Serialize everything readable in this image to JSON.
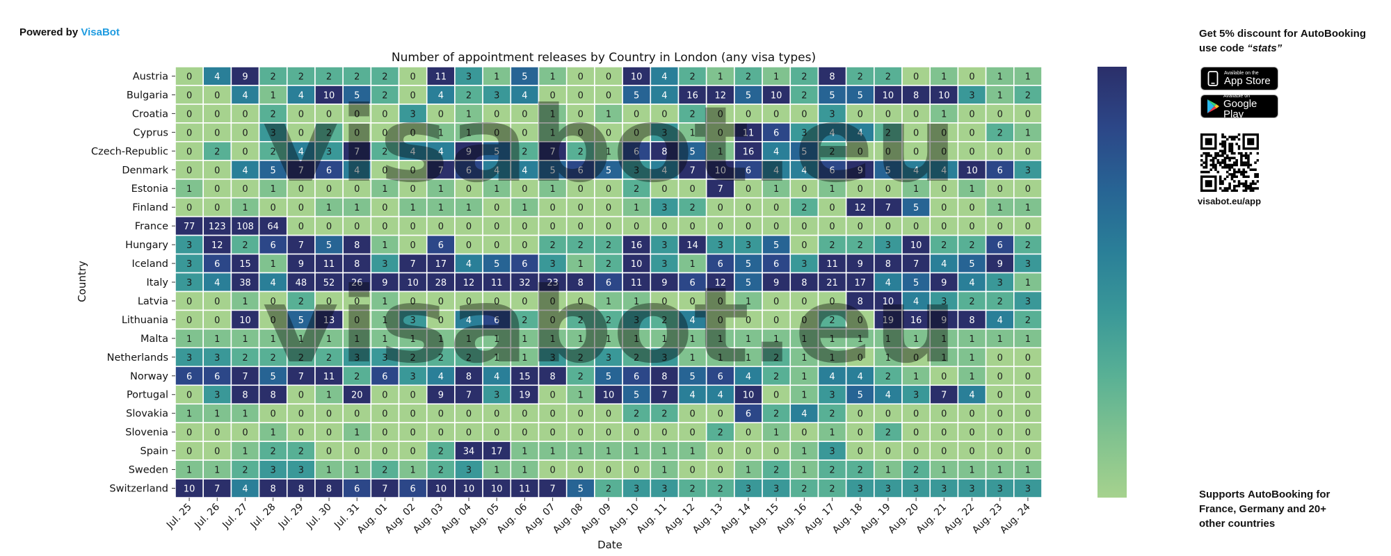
{
  "header": {
    "powered_prefix": "Powered by",
    "powered_brand": "VisaBot"
  },
  "promo": {
    "top_lines": [
      [
        {
          "t": "Get 5% discount for ",
          "b": false
        },
        {
          "t": "AutoBooking",
          "b": true
        }
      ],
      [
        {
          "t": "use code ",
          "b": false
        },
        {
          "t": "“stats”",
          "b": true,
          "i": true
        }
      ]
    ],
    "bottom_lines": [
      [
        {
          "t": "Supports ",
          "b": false
        },
        {
          "t": "AutoBooking",
          "b": true
        },
        {
          "t": " for",
          "b": false
        }
      ],
      [
        {
          "t": "France, Germany and 20+",
          "b": false
        }
      ],
      [
        {
          "t": "other countries",
          "b": false
        }
      ]
    ],
    "app_store_small": "Available on the",
    "app_store_big": "App Store",
    "google_play_small": "Available on",
    "google_play_big": "Google Play",
    "qr_url": "visabot.eu/app"
  },
  "watermark": "visabot.eu",
  "colors": {
    "brand": "#1e9be0",
    "cell_border": "#ffffff"
  },
  "chart_data": {
    "type": "heatmap",
    "title": "Number of appointment releases by Country in London (any visa types)",
    "xlabel": "Date",
    "ylabel": "Country",
    "colorbar": {
      "min": 0,
      "max": 7,
      "ticks": [
        0,
        1,
        2,
        3,
        4,
        5,
        6,
        7
      ]
    },
    "colorscale": [
      "#a6d28e",
      "#80c28f",
      "#58b095",
      "#3a9898",
      "#2a7f98",
      "#276494",
      "#2c4788",
      "#2b2f6a"
    ],
    "x": [
      "Jul. 25",
      "Jul. 26",
      "Jul. 27",
      "Jul. 28",
      "Jul. 29",
      "Jul. 30",
      "Jul. 31",
      "Aug. 01",
      "Aug. 02",
      "Aug. 03",
      "Aug. 04",
      "Aug. 05",
      "Aug. 06",
      "Aug. 07",
      "Aug. 08",
      "Aug. 09",
      "Aug. 10",
      "Aug. 11",
      "Aug. 12",
      "Aug. 13",
      "Aug. 14",
      "Aug. 15",
      "Aug. 16",
      "Aug. 17",
      "Aug. 18",
      "Aug. 19",
      "Aug. 20",
      "Aug. 21",
      "Aug. 22",
      "Aug. 23",
      "Aug. 24"
    ],
    "y": [
      "Austria",
      "Bulgaria",
      "Croatia",
      "Cyprus",
      "Czech-Republic",
      "Denmark",
      "Estonia",
      "Finland",
      "France",
      "Hungary",
      "Iceland",
      "Italy",
      "Latvia",
      "Lithuania",
      "Malta",
      "Netherlands",
      "Norway",
      "Portugal",
      "Slovakia",
      "Slovenia",
      "Spain",
      "Sweden",
      "Switzerland"
    ],
    "z": [
      [
        0,
        4,
        9,
        2,
        2,
        2,
        2,
        2,
        0,
        11,
        3,
        1,
        5,
        1,
        0,
        0,
        10,
        4,
        2,
        1,
        2,
        1,
        2,
        8,
        2,
        2,
        0,
        1,
        0,
        1,
        1
      ],
      [
        0,
        0,
        4,
        1,
        4,
        10,
        5,
        2,
        0,
        4,
        2,
        3,
        4,
        0,
        0,
        0,
        5,
        4,
        16,
        12,
        5,
        10,
        2,
        5,
        5,
        10,
        8,
        10,
        3,
        1,
        2
      ],
      [
        0,
        0,
        0,
        2,
        0,
        0,
        0,
        0,
        3,
        0,
        1,
        0,
        0,
        1,
        0,
        1,
        0,
        0,
        2,
        0,
        0,
        0,
        0,
        3,
        0,
        0,
        0,
        1,
        0,
        0,
        0
      ],
      [
        0,
        0,
        0,
        3,
        0,
        2,
        0,
        0,
        0,
        1,
        1,
        0,
        0,
        1,
        0,
        0,
        0,
        3,
        1,
        0,
        11,
        6,
        3,
        4,
        4,
        2,
        0,
        0,
        0,
        2,
        1
      ],
      [
        0,
        2,
        0,
        2,
        4,
        3,
        7,
        2,
        4,
        4,
        9,
        5,
        2,
        7,
        2,
        1,
        6,
        8,
        5,
        1,
        16,
        4,
        5,
        2,
        0,
        0,
        0,
        0,
        0,
        0,
        0
      ],
      [
        0,
        0,
        4,
        5,
        7,
        6,
        4,
        0,
        0,
        7,
        6,
        4,
        4,
        5,
        6,
        5,
        3,
        4,
        7,
        10,
        6,
        4,
        4,
        6,
        9,
        5,
        4,
        4,
        10,
        6,
        3
      ],
      [
        1,
        0,
        0,
        1,
        0,
        0,
        0,
        1,
        0,
        1,
        0,
        1,
        0,
        1,
        0,
        0,
        2,
        0,
        0,
        7,
        0,
        1,
        0,
        1,
        0,
        0,
        1,
        0,
        1,
        0,
        0
      ],
      [
        0,
        0,
        1,
        0,
        0,
        1,
        1,
        0,
        1,
        1,
        1,
        0,
        1,
        0,
        0,
        0,
        1,
        3,
        2,
        0,
        0,
        0,
        2,
        0,
        12,
        7,
        5,
        0,
        0,
        1,
        1
      ],
      [
        77,
        123,
        108,
        64,
        0,
        0,
        0,
        0,
        0,
        0,
        0,
        0,
        0,
        0,
        0,
        0,
        0,
        0,
        0,
        0,
        0,
        0,
        0,
        0,
        0,
        0,
        0,
        0,
        0,
        0,
        0
      ],
      [
        3,
        12,
        2,
        6,
        7,
        5,
        8,
        1,
        0,
        6,
        0,
        0,
        0,
        2,
        2,
        2,
        16,
        3,
        14,
        3,
        3,
        5,
        0,
        2,
        2,
        3,
        10,
        2,
        2,
        6,
        2
      ],
      [
        3,
        6,
        15,
        1,
        9,
        11,
        8,
        3,
        7,
        17,
        4,
        5,
        6,
        3,
        1,
        2,
        10,
        3,
        1,
        6,
        5,
        6,
        3,
        11,
        9,
        8,
        7,
        4,
        5,
        9,
        3
      ],
      [
        3,
        4,
        38,
        4,
        48,
        52,
        26,
        9,
        10,
        28,
        12,
        11,
        32,
        23,
        8,
        6,
        11,
        9,
        6,
        12,
        5,
        9,
        8,
        21,
        17,
        4,
        5,
        9,
        4,
        3,
        1
      ],
      [
        0,
        0,
        1,
        0,
        2,
        0,
        0,
        1,
        0,
        0,
        0,
        0,
        0,
        0,
        0,
        1,
        1,
        0,
        0,
        0,
        1,
        0,
        0,
        0,
        8,
        10,
        4,
        3,
        2,
        2,
        3
      ],
      [
        0,
        0,
        10,
        0,
        5,
        13,
        0,
        1,
        3,
        0,
        4,
        6,
        2,
        0,
        2,
        2,
        3,
        2,
        4,
        0,
        0,
        0,
        0,
        2,
        0,
        19,
        16,
        9,
        8,
        4,
        2
      ],
      [
        1,
        1,
        1,
        1,
        1,
        1,
        1,
        1,
        1,
        1,
        1,
        1,
        1,
        1,
        1,
        1,
        1,
        1,
        1,
        1,
        1,
        1,
        1,
        1,
        1,
        1,
        1,
        1,
        1,
        1,
        1
      ],
      [
        3,
        3,
        2,
        2,
        2,
        2,
        3,
        3,
        2,
        2,
        2,
        1,
        1,
        3,
        2,
        3,
        2,
        3,
        1,
        1,
        1,
        2,
        1,
        1,
        0,
        1,
        0,
        1,
        1,
        0,
        0
      ],
      [
        6,
        6,
        7,
        5,
        7,
        11,
        2,
        6,
        3,
        4,
        8,
        4,
        15,
        8,
        2,
        5,
        6,
        8,
        5,
        6,
        4,
        2,
        1,
        4,
        4,
        2,
        1,
        0,
        1,
        0,
        0
      ],
      [
        0,
        3,
        8,
        8,
        0,
        1,
        20,
        0,
        0,
        9,
        7,
        3,
        19,
        0,
        1,
        10,
        5,
        7,
        4,
        4,
        10,
        0,
        1,
        3,
        5,
        4,
        3,
        7,
        4,
        0,
        0
      ],
      [
        1,
        1,
        1,
        0,
        0,
        0,
        0,
        0,
        0,
        0,
        0,
        0,
        0,
        0,
        0,
        0,
        2,
        2,
        0,
        0,
        6,
        2,
        4,
        2,
        0,
        0,
        0,
        0,
        0,
        0,
        0
      ],
      [
        0,
        0,
        0,
        1,
        0,
        0,
        1,
        0,
        0,
        0,
        0,
        0,
        0,
        0,
        0,
        0,
        0,
        0,
        0,
        2,
        0,
        1,
        0,
        1,
        0,
        2,
        0,
        0,
        0,
        0,
        0
      ],
      [
        0,
        0,
        1,
        2,
        2,
        0,
        0,
        0,
        0,
        2,
        34,
        17,
        1,
        1,
        1,
        1,
        1,
        1,
        1,
        0,
        0,
        0,
        1,
        3,
        0,
        0,
        0,
        0,
        0,
        0,
        0
      ],
      [
        1,
        1,
        2,
        3,
        3,
        1,
        1,
        2,
        1,
        2,
        3,
        1,
        1,
        0,
        0,
        0,
        0,
        1,
        0,
        0,
        1,
        2,
        1,
        2,
        2,
        1,
        2,
        1,
        1,
        1,
        1
      ],
      [
        10,
        7,
        4,
        8,
        8,
        8,
        6,
        7,
        6,
        10,
        10,
        10,
        11,
        7,
        5,
        2,
        3,
        3,
        2,
        2,
        3,
        3,
        2,
        2,
        3,
        3,
        3,
        3,
        3,
        3,
        3
      ]
    ]
  }
}
